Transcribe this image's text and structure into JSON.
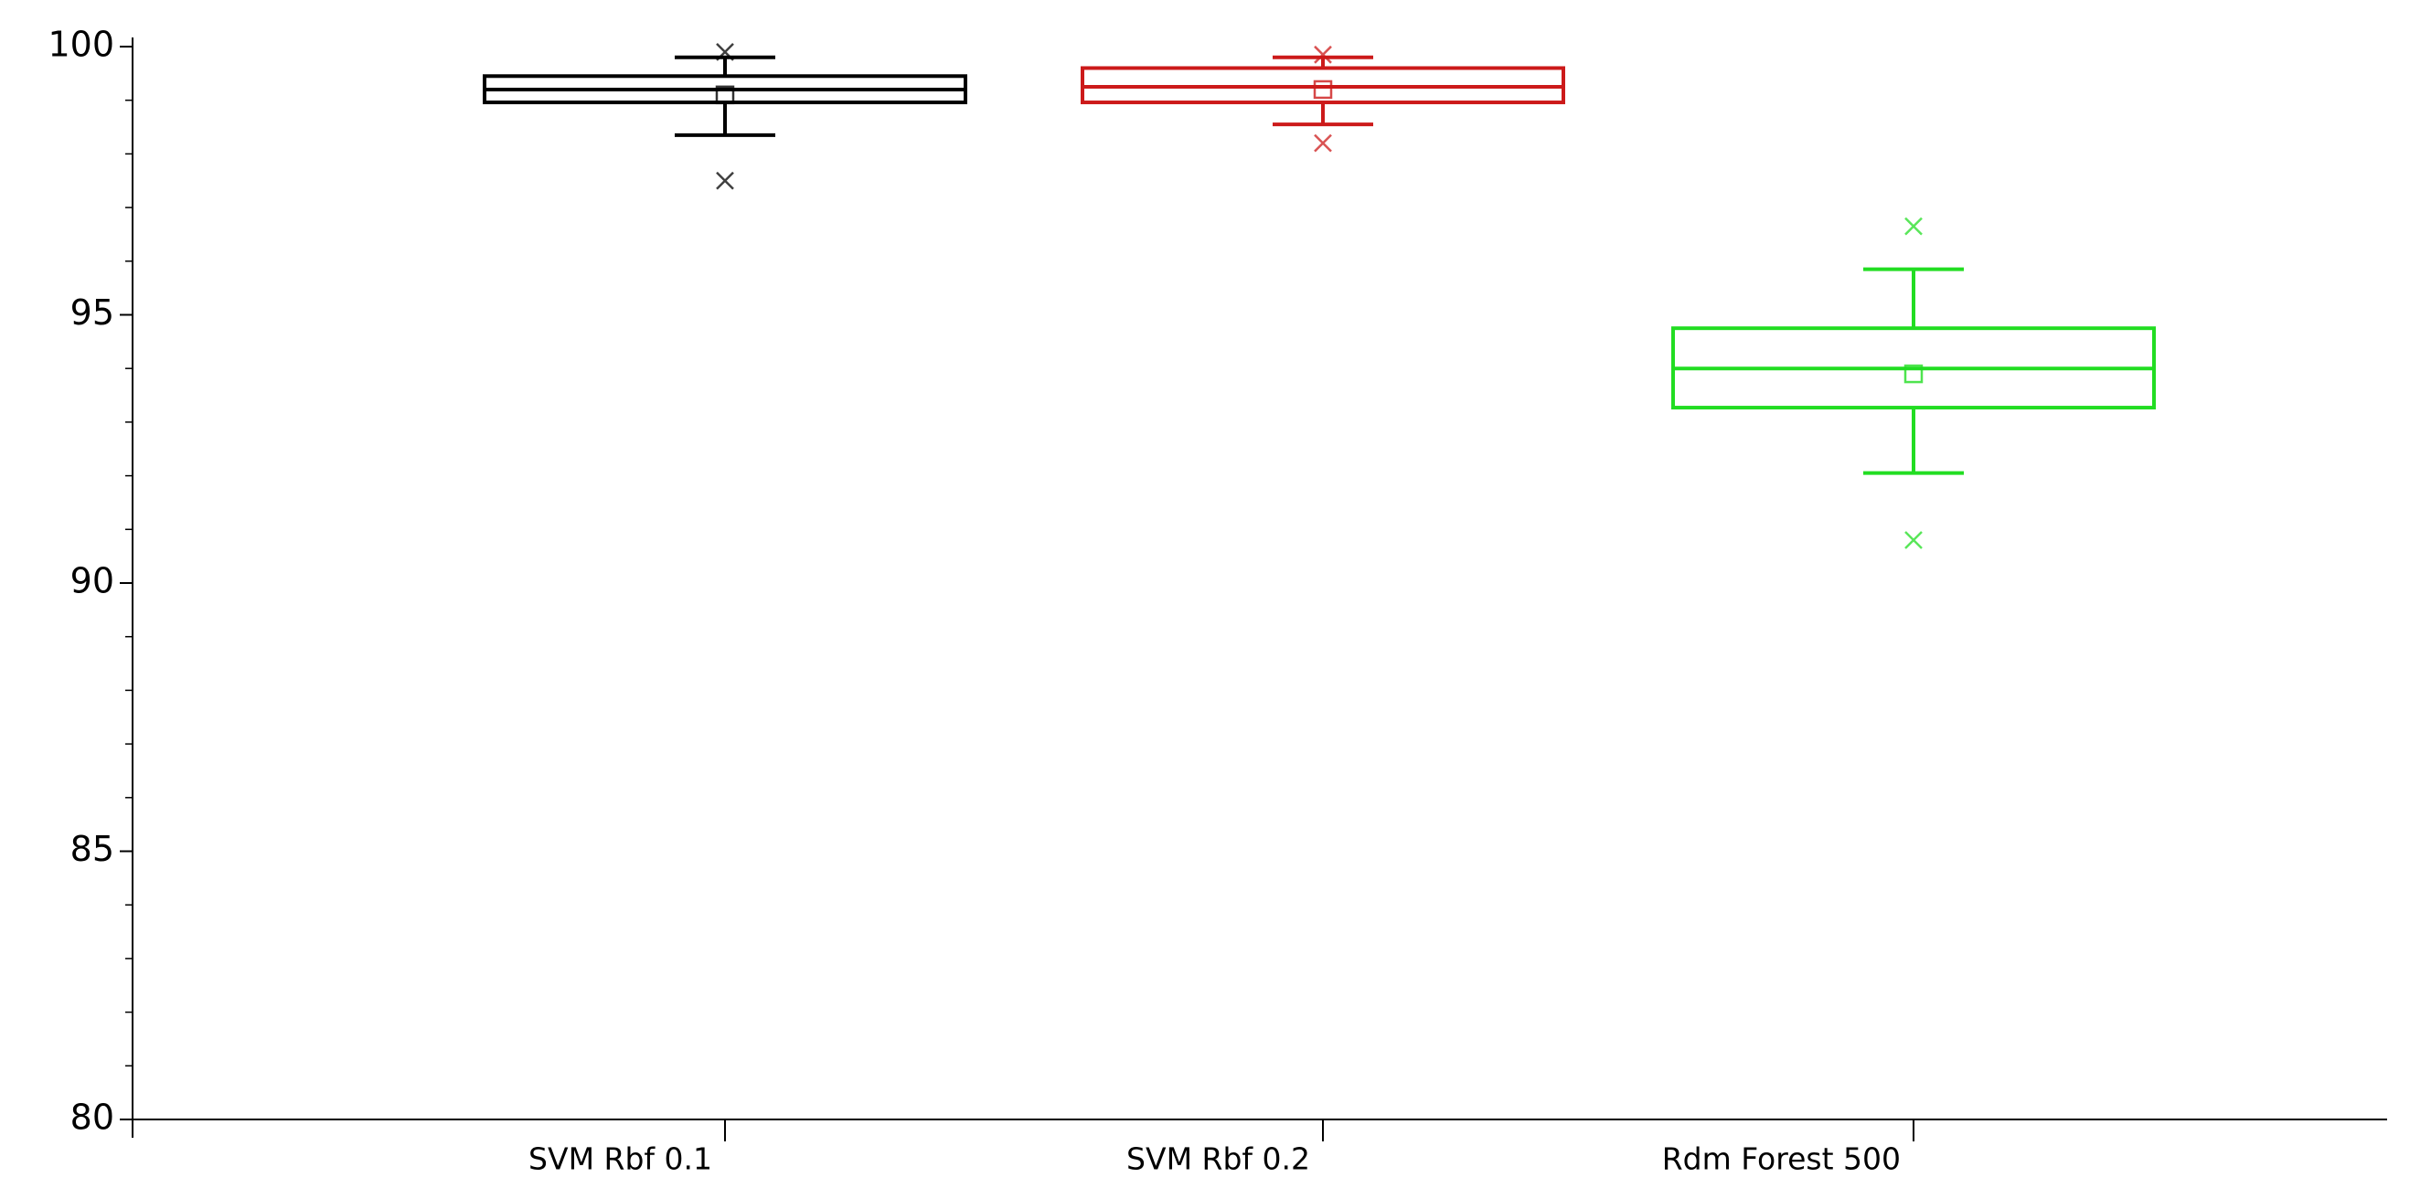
{
  "chart_data": {
    "type": "box",
    "categories": [
      "SVM Rbf 0.1",
      "SVM Rbf 0.2",
      "Rdm Forest 500"
    ],
    "boxes": [
      {
        "color": "#000000",
        "min": 98.35,
        "q1": 98.96,
        "median": 99.2,
        "q3": 99.45,
        "max": 99.8,
        "mean": 99.1,
        "outliers": [
          97.5,
          99.9
        ]
      },
      {
        "color": "#cc1a1a",
        "min": 98.55,
        "q1": 98.96,
        "median": 99.25,
        "q3": 99.6,
        "max": 99.8,
        "mean": 99.2,
        "outliers": [
          98.2,
          99.85
        ]
      },
      {
        "color": "#22dd22",
        "min": 92.05,
        "q1": 93.27,
        "median": 94.0,
        "q3": 94.75,
        "max": 95.85,
        "mean": 93.9,
        "outliers": [
          96.65,
          90.8
        ]
      }
    ],
    "ylim": [
      80,
      100
    ],
    "yticks": [
      80,
      85,
      90,
      95,
      100
    ],
    "yminorticks": [
      81,
      82,
      83,
      84,
      86,
      87,
      88,
      89,
      91,
      92,
      93,
      94,
      96,
      97,
      98,
      99
    ]
  }
}
